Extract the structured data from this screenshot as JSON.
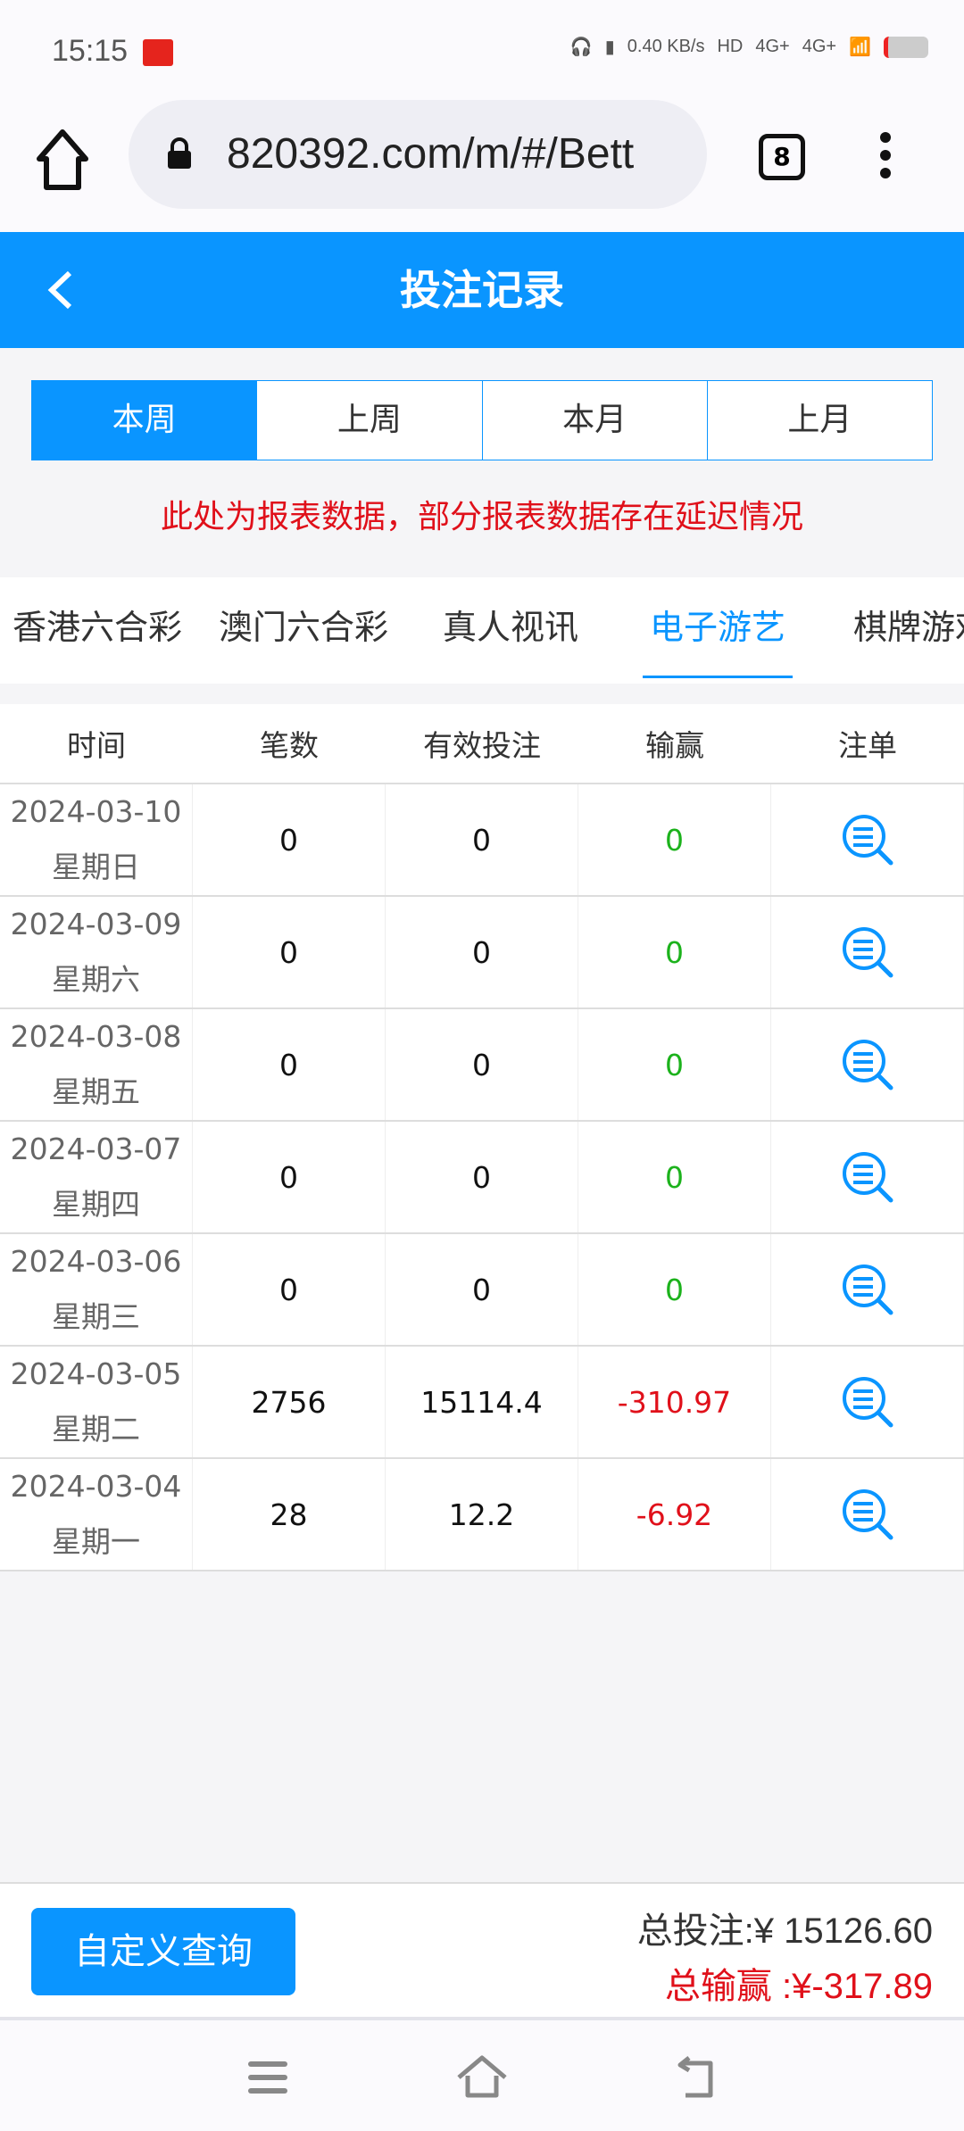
{
  "status_bar": {
    "time": "15:15",
    "net_speed": "0.40 KB/s",
    "hd": "HD",
    "sig1": "4G+",
    "sig2": "4G+"
  },
  "browser": {
    "url": "820392.com/m/#/Bett",
    "tab_count": "8"
  },
  "header": {
    "title": "投注记录"
  },
  "period_tabs": [
    {
      "label": "本周",
      "active": true
    },
    {
      "label": "上周"
    },
    {
      "label": "本月"
    },
    {
      "label": "上月"
    }
  ],
  "notice": "此处为报表数据，部分报表数据存在延迟情况",
  "categories": [
    {
      "label": "香港六合彩"
    },
    {
      "label": "澳门六合彩"
    },
    {
      "label": "真人视讯"
    },
    {
      "label": "电子游艺",
      "active": true
    },
    {
      "label": "棋牌游戏"
    }
  ],
  "table": {
    "columns": [
      "时间",
      "笔数",
      "有效投注",
      "输赢",
      "注单"
    ],
    "rows": [
      {
        "date": "2024-03-10",
        "weekday": "星期日",
        "count": "0",
        "valid": "0",
        "winloss": "0"
      },
      {
        "date": "2024-03-09",
        "weekday": "星期六",
        "count": "0",
        "valid": "0",
        "winloss": "0"
      },
      {
        "date": "2024-03-08",
        "weekday": "星期五",
        "count": "0",
        "valid": "0",
        "winloss": "0"
      },
      {
        "date": "2024-03-07",
        "weekday": "星期四",
        "count": "0",
        "valid": "0",
        "winloss": "0"
      },
      {
        "date": "2024-03-06",
        "weekday": "星期三",
        "count": "0",
        "valid": "0",
        "winloss": "0"
      },
      {
        "date": "2024-03-05",
        "weekday": "星期二",
        "count": "2756",
        "valid": "15114.4",
        "winloss": "-310.97"
      },
      {
        "date": "2024-03-04",
        "weekday": "星期一",
        "count": "28",
        "valid": "12.2",
        "winloss": "-6.92"
      }
    ]
  },
  "footer": {
    "custom_query": "自定义查询",
    "total_bet": "总投注:¥ 15126.60",
    "total_winloss": "总输赢 :¥-317.89"
  },
  "colors": {
    "accent": "#0a95ff",
    "loss": "#e0101a",
    "win": "#1cb21c"
  }
}
